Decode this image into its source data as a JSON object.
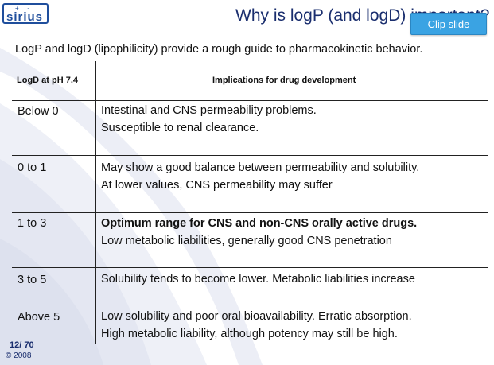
{
  "logo": {
    "text": "sirius",
    "dots": "+ ·"
  },
  "title": "Why is logP (and logD) important?",
  "clip_button": "Clip slide",
  "intro": "LogP and logD (lipophilicity) provide a rough guide to pharmacokinetic behavior.",
  "table": {
    "headers": [
      "LogD at pH 7.4",
      "Implications for drug development"
    ],
    "rows": [
      {
        "range": "Below 0",
        "lines": [
          "Intestinal and CNS permeability problems.",
          "Susceptible to renal clearance."
        ],
        "bold_first": false
      },
      {
        "range": "0 to 1",
        "lines": [
          "May show a good balance between permeability and solubility.",
          "At lower values, CNS permeability may suffer"
        ],
        "bold_first": false
      },
      {
        "range": "1 to 3",
        "lines": [
          "Optimum range for CNS and non-CNS orally active drugs.",
          "Low metabolic liabilities, generally good CNS penetration"
        ],
        "bold_first": true
      },
      {
        "range": "3 to 5",
        "lines": [
          "Solubility tends to become lower. Metabolic liabilities increase"
        ],
        "bold_first": false
      },
      {
        "range": "Above 5",
        "lines": [
          "Low solubility and poor oral bioavailability. Erratic absorption.",
          "High metabolic liability, although potency may still be high."
        ],
        "bold_first": false
      }
    ]
  },
  "footer": {
    "page": "12/ 70",
    "copyright": "© 2008"
  },
  "colors": {
    "title": "#1a2e6e",
    "clip_button": "#3aa3e3",
    "brand": "#1f4e9c"
  }
}
